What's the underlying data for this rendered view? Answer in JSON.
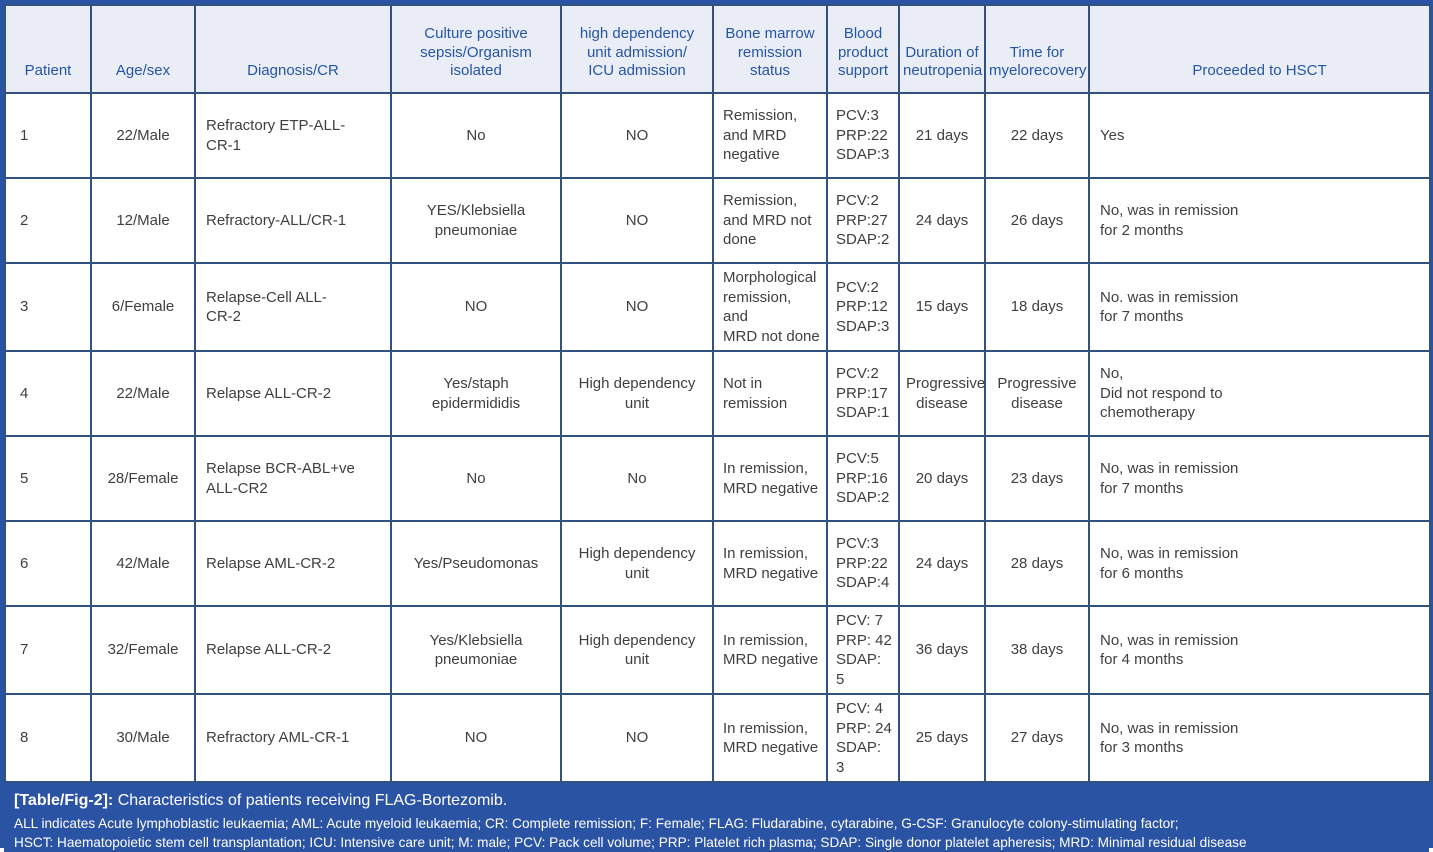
{
  "figure": {
    "caption_label": "[Table/Fig-2]:",
    "caption_text": "Characteristics of patients receiving FLAG-Bortezomib.",
    "abbreviations": [
      "ALL indicates Acute lymphoblastic leukaemia; AML: Acute myeloid leukaemia; CR: Complete remission; F: Female; FLAG: Fludarabine, cytarabine, G-CSF: Granulocyte colony-stimulating factor;",
      "HSCT: Haematopoietic stem cell transplantation; ICU: Intensive care unit; M: male; PCV: Pack cell volume; PRP: Platelet rich plasma; SDAP: Single donor platelet apheresis; MRD: Minimal residual disease"
    ]
  },
  "colors": {
    "band_blue": "#2b53a4",
    "grid_line_blue": "#31517f",
    "header_background": "#eaedf5",
    "header_text_blue": "#2456a6",
    "body_text_gray": "#3f3f3f"
  },
  "table": {
    "columns": [
      "Patient",
      "Age/sex",
      "Diagnosis/CR",
      "Culture positive\nsepsis/Organism\nisolated",
      "high dependency\nunit admission/\nICU admission",
      "Bone marrow\nremission\nstatus",
      "Blood\nproduct\nsupport",
      "Duration of\nneutropenia",
      "Time for\nmyelorecovery",
      "Proceeded to HSCT"
    ],
    "rows": [
      {
        "cells": [
          "1",
          "22/Male",
          "Refractory ETP-ALL-\nCR-1",
          "No",
          "NO",
          "Remission,\nand MRD\nnegative",
          "PCV:3\nPRP:22\nSDAP:3",
          "21 days",
          "22 days",
          "Yes"
        ]
      },
      {
        "cells": [
          "2",
          "12/Male",
          "Refractory-ALL/CR-1",
          "YES/Klebsiella\npneumoniae",
          "NO",
          "Remission,\nand MRD not\ndone",
          "PCV:2\nPRP:27\nSDAP:2",
          "24 days",
          "26 days",
          "No, was in remission\nfor 2 months"
        ]
      },
      {
        "cells": [
          "3",
          "6/Female",
          "Relapse-Cell ALL-\nCR-2",
          "NO",
          "NO",
          "Morphological\nremission, and\nMRD not done",
          "PCV:2\nPRP:12\nSDAP:3",
          "15 days",
          "18 days",
          "No. was in remission\nfor 7 months"
        ]
      },
      {
        "cells": [
          "4",
          "22/Male",
          "Relapse ALL-CR-2",
          "Yes/staph\nepidermididis",
          "High dependency\nunit",
          "Not in remission",
          "PCV:2\nPRP:17\nSDAP:1",
          "Progressive\ndisease",
          "Progressive\ndisease",
          "No,\nDid not respond to\nchemotherapy"
        ]
      },
      {
        "cells": [
          "5",
          "28/Female",
          "Relapse BCR-ABL+ve\nALL-CR2",
          "No",
          "No",
          "In remission,\nMRD negative",
          "PCV:5\nPRP:16\nSDAP:2",
          "20 days",
          "23 days",
          "No, was in remission\nfor 7 months"
        ]
      },
      {
        "cells": [
          "6",
          "42/Male",
          "Relapse AML-CR-2",
          "Yes/Pseudomonas",
          "High dependency\nunit",
          "In remission,\nMRD negative",
          "PCV:3\nPRP:22\nSDAP:4",
          "24 days",
          "28 days",
          "No, was in remission\nfor 6 months"
        ]
      },
      {
        "cells": [
          "7",
          "32/Female",
          "Relapse ALL-CR-2",
          "Yes/Klebsiella\npneumoniae",
          "High dependency\nunit",
          "In remission,\nMRD negative",
          "PCV: 7\nPRP: 42\nSDAP: 5",
          "36 days",
          "38 days",
          "No, was in remission\nfor 4 months"
        ]
      },
      {
        "cells": [
          "8",
          "30/Male",
          "Refractory AML-CR-1",
          "NO",
          "NO",
          "In remission,\nMRD negative",
          "PCV: 4\nPRP: 24\nSDAP: 3",
          "25 days",
          "27 days",
          "No, was in remission\nfor 3 months"
        ]
      }
    ]
  }
}
